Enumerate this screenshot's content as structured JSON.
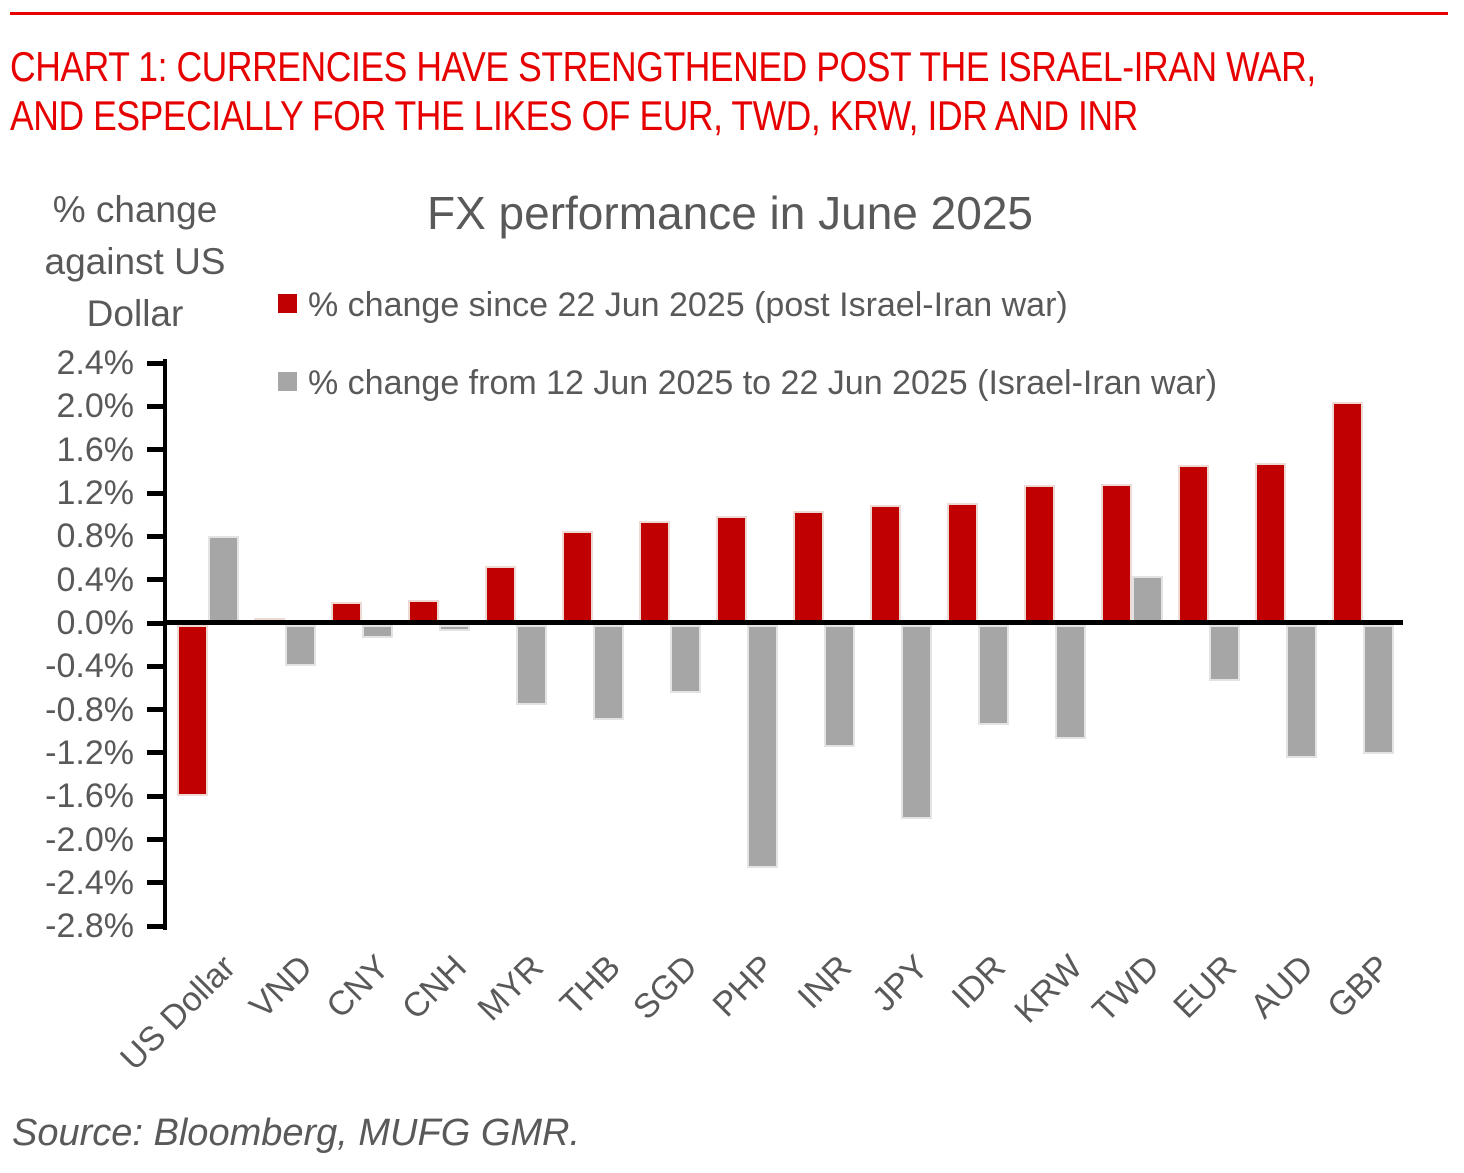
{
  "page": {
    "title_line1": "CHART 1: CURRENCIES HAVE STRENGTHENED POST THE ISRAEL-IRAN WAR,",
    "title_line2": "AND ESPECIALLY FOR THE LIKES OF EUR, TWD, KRW, IDR AND INR",
    "source": "Source: Bloomberg, MUFG GMR."
  },
  "colors": {
    "title_red": "#e60000",
    "bar_red": "#c00000",
    "bar_gray": "#a6a6a6",
    "text_gray": "#595959",
    "axis_black": "#000000"
  },
  "chart_data": {
    "type": "bar",
    "title": "FX performance in June 2025",
    "ylabel": "% change\nagainst US\nDollar",
    "xlabel": "",
    "grid": false,
    "legend_position": "top",
    "ylim": [
      -2.8,
      2.4
    ],
    "ytick_step": 0.4,
    "yticks": [
      {
        "label": "2.4%",
        "value": 2.4
      },
      {
        "label": "2.0%",
        "value": 2.0
      },
      {
        "label": "1.6%",
        "value": 1.6
      },
      {
        "label": "1.2%",
        "value": 1.2
      },
      {
        "label": "0.8%",
        "value": 0.8
      },
      {
        "label": "0.4%",
        "value": 0.4
      },
      {
        "label": "0.0%",
        "value": 0.0
      },
      {
        "label": "-0.4%",
        "value": -0.4
      },
      {
        "label": "-0.8%",
        "value": -0.8
      },
      {
        "label": "-1.2%",
        "value": -1.2
      },
      {
        "label": "-1.6%",
        "value": -1.6
      },
      {
        "label": "-2.0%",
        "value": -2.0
      },
      {
        "label": "-2.4%",
        "value": -2.4
      },
      {
        "label": "-2.8%",
        "value": -2.8
      }
    ],
    "categories": [
      "US Dollar",
      "VND",
      "CNY",
      "CNH",
      "MYR",
      "THB",
      "SGD",
      "PHP",
      "INR",
      "JPY",
      "IDR",
      "KRW",
      "TWD",
      "EUR",
      "AUD",
      "GBP"
    ],
    "series": [
      {
        "name": "% change since 22 Jun 2025 (post Israel-Iran war)",
        "color": "#c00000",
        "values": [
          -1.58,
          0.05,
          0.19,
          0.21,
          0.53,
          0.85,
          0.94,
          0.99,
          1.03,
          1.09,
          1.11,
          1.27,
          1.28,
          1.46,
          1.48,
          2.04
        ]
      },
      {
        "name": "% change from 12 Jun 2025 to 22 Jun 2025 (Israel-Iran war)",
        "color": "#a6a6a6",
        "values": [
          0.8,
          -0.38,
          -0.12,
          -0.06,
          -0.74,
          -0.88,
          -0.63,
          -2.24,
          -1.13,
          -1.79,
          -0.92,
          -1.05,
          0.43,
          -0.52,
          -1.23,
          -1.19
        ]
      }
    ]
  }
}
